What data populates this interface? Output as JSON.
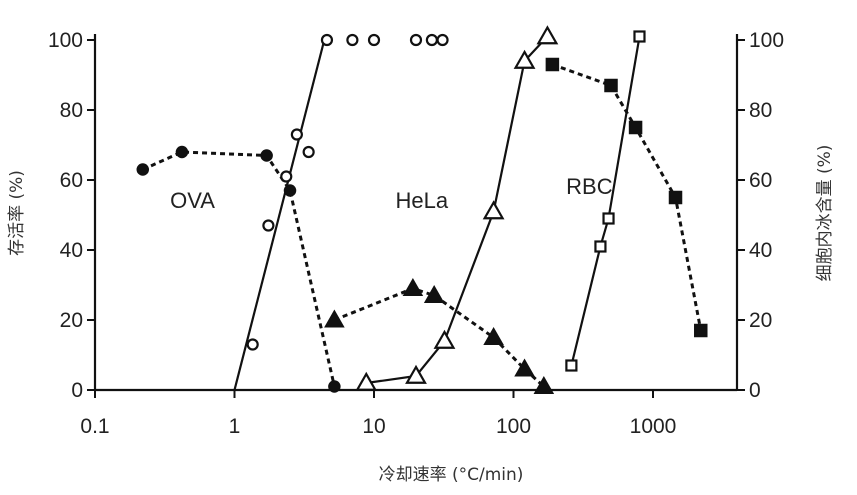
{
  "chart_data": {
    "type": "line",
    "x_scale": "log",
    "xlim": [
      0.1,
      4000
    ],
    "xticks": [
      0.1,
      1,
      10,
      100,
      1000
    ],
    "xtick_labels": [
      "0.1",
      "1",
      "10",
      "100",
      "1000"
    ],
    "ylim_left": [
      0,
      105
    ],
    "ylim_right": [
      0,
      105
    ],
    "yticks": [
      0,
      20,
      40,
      60,
      80,
      100
    ],
    "ytick_labels": [
      "0",
      "20",
      "40",
      "60",
      "80",
      "100"
    ],
    "xlabel": "冷却速率 (°C/min)",
    "ylabel_left": "存活率 (%)",
    "ylabel_right": "细胞内冰含量 (%)",
    "series": [
      {
        "name": "OVA",
        "axis": "left",
        "marker": "circle-filled",
        "line": "dashed",
        "x": [
          0.22,
          0.42,
          1.7,
          2.5,
          5.2
        ],
        "y": [
          63,
          68,
          67,
          57,
          1
        ]
      },
      {
        "name": "OVA",
        "axis": "right",
        "marker": "circle-open",
        "line": "solid",
        "line_x": [
          1.0,
          4.4
        ],
        "line_y": [
          0,
          100
        ],
        "x": [
          1.35,
          1.75,
          2.35,
          2.8,
          3.4,
          4.6,
          7.0,
          10,
          20,
          26,
          31
        ],
        "y": [
          13,
          47,
          61,
          73,
          68,
          100,
          100,
          100,
          100,
          100,
          100
        ]
      },
      {
        "name": "HeLa",
        "axis": "left",
        "marker": "triangle-filled",
        "line": "dashed",
        "x": [
          5.2,
          19,
          27,
          72,
          120,
          165
        ],
        "y": [
          20,
          29,
          27,
          15,
          6,
          1
        ]
      },
      {
        "name": "HeLa",
        "axis": "right",
        "marker": "triangle-open",
        "line": "solid",
        "x": [
          8.8,
          20,
          32,
          72,
          120,
          175
        ],
        "y": [
          2,
          4,
          14,
          51,
          94,
          101
        ]
      },
      {
        "name": "RBC",
        "axis": "left",
        "marker": "square-filled",
        "line": "dashed",
        "x": [
          190,
          500,
          750,
          1450,
          2200
        ],
        "y": [
          93,
          87,
          75,
          55,
          17
        ]
      },
      {
        "name": "RBC",
        "axis": "right",
        "marker": "square-open",
        "line": "solid",
        "x": [
          260,
          420,
          480,
          800
        ],
        "y": [
          7,
          41,
          49,
          101
        ]
      }
    ],
    "annotations": [
      {
        "text": "OVA",
        "x": 0.5,
        "y": 52
      },
      {
        "text": "HeLa",
        "x": 22,
        "y": 52
      },
      {
        "text": "RBC",
        "x": 350,
        "y": 56
      }
    ]
  }
}
